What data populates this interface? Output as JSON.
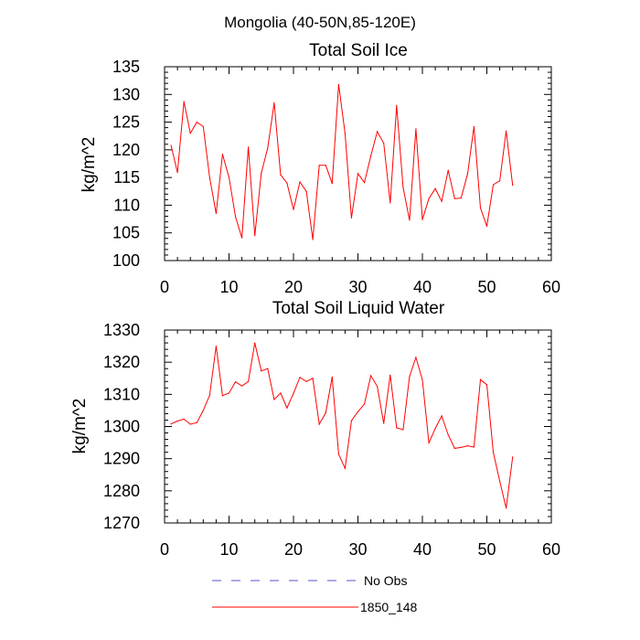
{
  "figure_title": "Mongolia (40-50N,85-120E)",
  "legend": {
    "items": [
      {
        "label": "No Obs",
        "color": "#5555cc",
        "dashed": true
      },
      {
        "label": "1850_148",
        "color": "#ff0000",
        "dashed": false
      }
    ]
  },
  "chart_data": [
    {
      "type": "line",
      "title": "Total Soil Ice",
      "xlabel": "",
      "ylabel": "kg/m^2",
      "xlim": [
        0,
        60
      ],
      "ylim": [
        100,
        135
      ],
      "x_ticks": [
        0,
        10,
        20,
        30,
        40,
        50,
        60
      ],
      "y_ticks": [
        100,
        105,
        110,
        115,
        120,
        125,
        130,
        135
      ],
      "x_minor_step": 2,
      "y_minor_step": 1,
      "series": [
        {
          "name": "1850_148",
          "color": "#ff0000",
          "x": [
            1,
            2,
            3,
            4,
            5,
            6,
            7,
            8,
            9,
            10,
            11,
            12,
            13,
            14,
            15,
            16,
            17,
            18,
            19,
            20,
            21,
            22,
            23,
            24,
            25,
            26,
            27,
            28,
            29,
            30,
            31,
            32,
            33,
            34,
            35,
            36,
            37,
            38,
            39,
            40,
            41,
            42,
            43,
            44,
            45,
            46,
            47,
            48,
            49,
            50,
            51,
            52,
            53,
            54
          ],
          "values": [
            120.8,
            115.9,
            128.7,
            123.0,
            125.0,
            124.2,
            115.0,
            108.5,
            119.2,
            115.0,
            107.9,
            104.1,
            120.5,
            104.5,
            115.8,
            120.3,
            128.5,
            115.5,
            114.0,
            109.2,
            114.2,
            112.5,
            103.8,
            117.2,
            117.2,
            113.9,
            131.8,
            123.0,
            107.7,
            115.7,
            114.1,
            118.9,
            123.3,
            121.2,
            110.4,
            128.0,
            113.2,
            107.3,
            123.8,
            107.4,
            111.2,
            113.0,
            110.7,
            116.3,
            111.2,
            111.3,
            115.6,
            124.2,
            109.5,
            106.2,
            113.7,
            114.4,
            123.4,
            113.6
          ]
        }
      ]
    },
    {
      "type": "line",
      "title": "Total Soil Liquid Water",
      "xlabel": "",
      "ylabel": "kg/m^2",
      "xlim": [
        0,
        60
      ],
      "ylim": [
        1270,
        1330
      ],
      "x_ticks": [
        0,
        10,
        20,
        30,
        40,
        50,
        60
      ],
      "y_ticks": [
        1270,
        1280,
        1290,
        1300,
        1310,
        1320,
        1330
      ],
      "x_minor_step": 2,
      "y_minor_step": 2,
      "series": [
        {
          "name": "1850_148",
          "color": "#ff0000",
          "x": [
            1,
            2,
            3,
            4,
            5,
            6,
            7,
            8,
            9,
            10,
            11,
            12,
            13,
            14,
            15,
            16,
            17,
            18,
            19,
            20,
            21,
            22,
            23,
            24,
            25,
            26,
            27,
            28,
            29,
            30,
            31,
            32,
            33,
            34,
            35,
            36,
            37,
            38,
            39,
            40,
            41,
            42,
            43,
            44,
            45,
            46,
            47,
            48,
            49,
            50,
            51,
            52,
            53,
            54
          ],
          "values": [
            1300.8,
            1301.7,
            1302.3,
            1300.7,
            1301.2,
            1305.0,
            1309.7,
            1325.0,
            1309.6,
            1310.4,
            1313.9,
            1312.6,
            1314.0,
            1326.0,
            1317.3,
            1318.0,
            1308.4,
            1310.4,
            1305.8,
            1310.3,
            1315.3,
            1314.0,
            1315.0,
            1300.7,
            1304.3,
            1315.4,
            1291.4,
            1287.0,
            1301.8,
            1304.6,
            1307.0,
            1315.8,
            1312.5,
            1301.0,
            1316.0,
            1299.6,
            1299.0,
            1315.5,
            1321.5,
            1314.5,
            1294.9,
            1299.4,
            1303.3,
            1297.4,
            1293.2,
            1293.5,
            1294.0,
            1293.6,
            1314.6,
            1313.0,
            1292.0,
            1283.0,
            1274.6,
            1290.5
          ]
        }
      ]
    }
  ]
}
